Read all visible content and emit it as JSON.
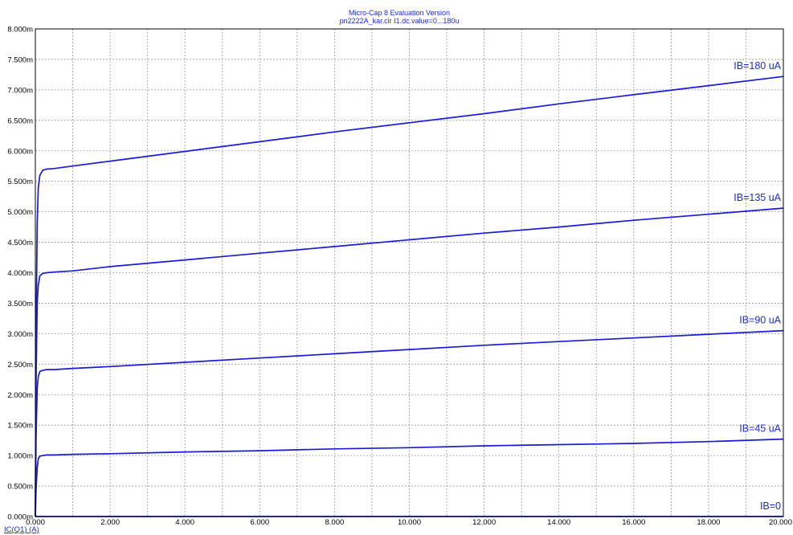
{
  "title": {
    "line1": "Micro-Cap 8 Evaluation Version",
    "line2": "pn2222A_kar.cir I1.dc.value=0...180u"
  },
  "colors": {
    "curve": "#1a1ad8",
    "text": "#1c2bd6",
    "grid": "#9a9a9a",
    "background": "#ffffff"
  },
  "chart_data": {
    "type": "line",
    "title": "Micro-Cap 8 Evaluation Version",
    "subtitle": "pn2222A_kar.cir I1.dc.value=0...180u",
    "xlabel": "",
    "ylabel": "IC(Q1) (A)",
    "xlim": [
      0,
      20
    ],
    "ylim": [
      0,
      0.008
    ],
    "grid": true,
    "x_ticks": [
      0,
      1,
      2,
      3,
      4,
      5,
      6,
      7,
      8,
      9,
      10,
      11,
      12,
      13,
      14,
      15,
      16,
      17,
      18,
      19,
      20
    ],
    "x_tick_labels": [
      "0.000",
      "2.000",
      "4.000",
      "6.000",
      "8.000",
      "10.000",
      "12.000",
      "14.000",
      "16.000",
      "18.000",
      "20.000"
    ],
    "x_tick_label_values": [
      0,
      2,
      4,
      6,
      8,
      10,
      12,
      14,
      16,
      18,
      20
    ],
    "y_ticks": [
      0,
      0.0005,
      0.001,
      0.0015,
      0.002,
      0.0025,
      0.003,
      0.0035,
      0.004,
      0.0045,
      0.005,
      0.0055,
      0.006,
      0.0065,
      0.007,
      0.0075,
      0.008
    ],
    "y_tick_labels": [
      "0.000m",
      "0.500m",
      "1.000m",
      "1.500m",
      "2.000m",
      "2.500m",
      "3.000m",
      "3.500m",
      "4.000m",
      "4.500m",
      "5.000m",
      "5.500m",
      "6.000m",
      "6.500m",
      "7.000m",
      "7.500m",
      "8.000m"
    ],
    "series": [
      {
        "name": "IB=0",
        "x": [
          0,
          0.1,
          0.3,
          1,
          5,
          10,
          15,
          20
        ],
        "y": [
          0,
          0,
          0,
          0,
          0,
          0,
          0,
          0
        ]
      },
      {
        "name": "IB=45 uA",
        "x": [
          0,
          0.02,
          0.05,
          0.08,
          0.12,
          0.2,
          0.3,
          0.5,
          1,
          2,
          4,
          6,
          8,
          10,
          12,
          14,
          16,
          18,
          20
        ],
        "y": [
          0,
          0.00045,
          0.0008,
          0.00095,
          0.00099,
          0.001,
          0.00101,
          0.00101,
          0.00102,
          0.00103,
          0.00106,
          0.00108,
          0.00111,
          0.00113,
          0.00116,
          0.00118,
          0.0012,
          0.00123,
          0.00127
        ]
      },
      {
        "name": "IB=90 uA",
        "x": [
          0,
          0.02,
          0.05,
          0.08,
          0.12,
          0.2,
          0.3,
          0.5,
          1,
          2,
          4,
          6,
          8,
          10,
          12,
          14,
          16,
          18,
          20
        ],
        "y": [
          0,
          0.0013,
          0.0021,
          0.0023,
          0.00238,
          0.0024,
          0.00241,
          0.00241,
          0.00243,
          0.00246,
          0.00253,
          0.0026,
          0.00267,
          0.00274,
          0.00281,
          0.00287,
          0.00293,
          0.00299,
          0.00305
        ]
      },
      {
        "name": "IB=135 uA",
        "x": [
          0,
          0.02,
          0.05,
          0.08,
          0.12,
          0.2,
          0.3,
          0.5,
          1,
          2,
          4,
          6,
          8,
          10,
          12,
          14,
          16,
          18,
          20
        ],
        "y": [
          0,
          0.0022,
          0.0035,
          0.0038,
          0.00395,
          0.00399,
          0.004,
          0.00401,
          0.00403,
          0.0041,
          0.00421,
          0.00432,
          0.00443,
          0.00454,
          0.00465,
          0.00475,
          0.00486,
          0.00496,
          0.00506
        ]
      },
      {
        "name": "IB=180 uA",
        "x": [
          0,
          0.02,
          0.05,
          0.08,
          0.12,
          0.2,
          0.3,
          0.5,
          1,
          2,
          4,
          6,
          8,
          10,
          12,
          14,
          16,
          18,
          20
        ],
        "y": [
          0,
          0.003,
          0.0048,
          0.0054,
          0.0056,
          0.00568,
          0.0057,
          0.00571,
          0.00575,
          0.00583,
          0.00599,
          0.00615,
          0.00631,
          0.00646,
          0.00661,
          0.00677,
          0.00692,
          0.00707,
          0.00722
        ]
      }
    ]
  }
}
